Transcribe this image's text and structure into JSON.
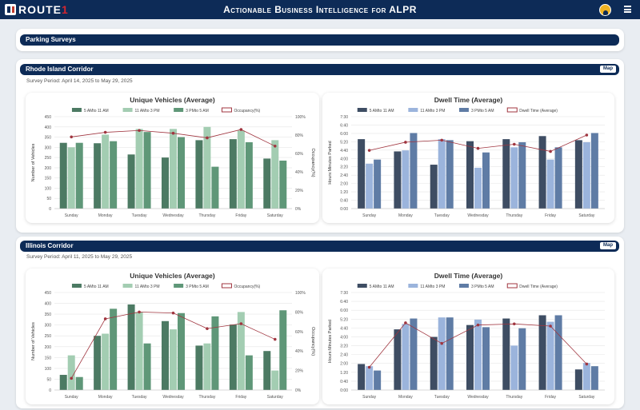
{
  "header": {
    "logo_text": "ROUTE",
    "logo_suffix": "1",
    "title": "Actionable Business Intelligence for ALPR",
    "user_icon": "avatar-icon",
    "menu_icon": "hamburger-menu-icon"
  },
  "page": {
    "section_title": "Parking Surveys"
  },
  "corridors": [
    {
      "name": "Rhode Island Corridor",
      "map_label": "Map",
      "survey_period": "Survey Period: April 14, 2025 to May 29, 2025"
    },
    {
      "name": "Illinois Corridor",
      "map_label": "Map",
      "survey_period": "Survey Period: April 11, 2025 to May 29, 2025"
    }
  ],
  "chart_data": [
    {
      "type": "bar",
      "title": "Unique Vehicles (Average)",
      "ylabel": "Number of Vehicles",
      "y2label": "Occupancy(%)",
      "ylim": [
        0,
        450
      ],
      "y_ticks": [
        "0",
        "50",
        "100",
        "150",
        "200",
        "250",
        "300",
        "350",
        "400",
        "450"
      ],
      "y2lim": [
        0,
        100
      ],
      "y2_ticks": [
        "0%",
        "20%",
        "40%",
        "60%",
        "80%",
        "100%"
      ],
      "categories": [
        "Sunday",
        "Monday",
        "Tuesday",
        "Wednesday",
        "Thursday",
        "Friday",
        "Saturday"
      ],
      "series": [
        {
          "name": "5 AMto 11 AM",
          "color": "#4c7a63",
          "values": [
            322,
            320,
            265,
            250,
            335,
            340,
            245
          ]
        },
        {
          "name": "11 AMto 3 PM",
          "color": "#a3cdb2",
          "values": [
            300,
            362,
            390,
            390,
            400,
            382,
            335
          ]
        },
        {
          "name": "3 PMto 5 AM",
          "color": "#5f9778",
          "values": [
            322,
            330,
            375,
            350,
            205,
            325,
            235
          ]
        }
      ],
      "line": {
        "name": "Occupancy(%)",
        "color": "#a0353f",
        "values": [
          78,
          83,
          85,
          82,
          77,
          86,
          68
        ]
      },
      "grid": true,
      "legend": "top"
    },
    {
      "type": "bar",
      "title": "Dwell Time (Average)",
      "ylabel": "Hours:Minutes Parked",
      "ylim": [
        0,
        450
      ],
      "y_ticks": [
        "0:00",
        "0:40",
        "1:20",
        "2:00",
        "2:40",
        "3:20",
        "4:00",
        "4:40",
        "5:20",
        "6:00",
        "6:40",
        "7:30"
      ],
      "categories": [
        "Sunday",
        "Monday",
        "Tuesday",
        "Wednesday",
        "Thursday",
        "Friday",
        "Saturday"
      ],
      "series": [
        {
          "name": "5 AMto 11 AM",
          "color": "#3e4d63",
          "values": [
            340,
            280,
            215,
            330,
            340,
            355,
            335
          ]
        },
        {
          "name": "11 AMto 3 PM",
          "color": "#9bb4dc",
          "values": [
            220,
            285,
            340,
            200,
            300,
            240,
            325
          ]
        },
        {
          "name": "3 PMto 5 AM",
          "color": "#5f7ca5",
          "values": [
            240,
            370,
            335,
            275,
            325,
            300,
            370
          ]
        }
      ],
      "line": {
        "name": "Dwell Time (Average)",
        "color": "#a0353f",
        "values": [
          285,
          325,
          335,
          295,
          315,
          280,
          360
        ]
      },
      "grid": true,
      "legend": "top"
    },
    {
      "type": "bar",
      "title": "Unique Vehicles (Average)",
      "ylabel": "Number of Vehicles",
      "y2label": "Occupancy(%)",
      "ylim": [
        0,
        450
      ],
      "y_ticks": [
        "0",
        "50",
        "100",
        "150",
        "200",
        "250",
        "300",
        "350",
        "400",
        "450"
      ],
      "y2lim": [
        0,
        100
      ],
      "y2_ticks": [
        "0%",
        "20%",
        "40%",
        "60%",
        "80%",
        "100%"
      ],
      "categories": [
        "Sunday",
        "Monday",
        "Tuesday",
        "Wednesday",
        "Thursday",
        "Friday",
        "Saturday"
      ],
      "series": [
        {
          "name": "5 AMto 11 AM",
          "color": "#4c7a63",
          "values": [
            70,
            250,
            395,
            318,
            205,
            302,
            180
          ]
        },
        {
          "name": "11 AMto 3 PM",
          "color": "#a3cdb2",
          "values": [
            160,
            260,
            360,
            280,
            215,
            360,
            90
          ]
        },
        {
          "name": "3 PMto 5 AM",
          "color": "#5f9778",
          "values": [
            60,
            375,
            215,
            355,
            340,
            160,
            368
          ]
        }
      ],
      "line": {
        "name": "Occupancy(%)",
        "color": "#a0353f",
        "values": [
          12,
          73,
          80,
          79,
          63,
          68,
          52
        ]
      },
      "grid": true,
      "legend": "top"
    },
    {
      "type": "bar",
      "title": "Dwell Time (Average)",
      "ylabel": "Hours:Minutes Parked",
      "ylim": [
        0,
        450
      ],
      "y_ticks": [
        "0:00",
        "0:40",
        "1:20",
        "2:00",
        "2:40",
        "3:20",
        "4:00",
        "4:40",
        "5:20",
        "6:00",
        "6:40",
        "7:30"
      ],
      "categories": [
        "Sunday",
        "Monday",
        "Tuesday",
        "Wednesday",
        "Thursday",
        "Friday",
        "Saturday"
      ],
      "series": [
        {
          "name": "5 AMto 11 AM",
          "color": "#3e4d63",
          "values": [
            120,
            280,
            245,
            300,
            330,
            345,
            95
          ]
        },
        {
          "name": "11 AMto 3 PM",
          "color": "#9bb4dc",
          "values": [
            110,
            305,
            335,
            325,
            205,
            315,
            125
          ]
        },
        {
          "name": "3 PMto 5 AM",
          "color": "#5f7ca5",
          "values": [
            90,
            330,
            335,
            290,
            285,
            345,
            110
          ]
        }
      ],
      "line": {
        "name": "Dwell Time (Average)",
        "color": "#a0353f",
        "values": [
          105,
          310,
          215,
          300,
          305,
          295,
          120
        ]
      },
      "grid": true,
      "legend": "top"
    }
  ]
}
